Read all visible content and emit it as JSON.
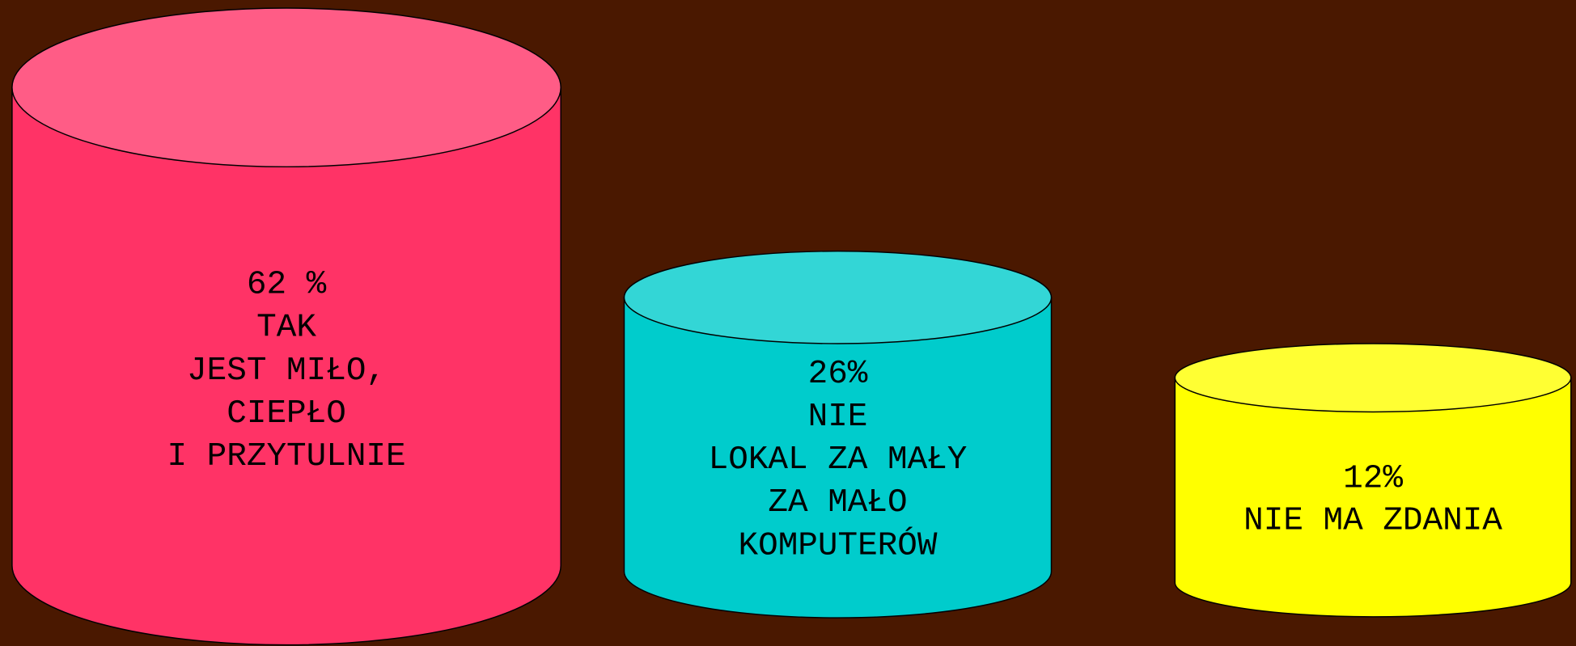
{
  "nodes": [
    {
      "lines": [
        "62 %",
        "TAK",
        "JEST MIŁO,",
        "CIEPŁO",
        "I PRZYTULNIE"
      ]
    },
    {
      "lines": [
        "26%",
        "NIE",
        "LOKAL ZA MAŁY",
        "ZA MAŁO",
        "KOMPUTERÓW"
      ]
    },
    {
      "lines": [
        "12%",
        "NIE MA ZDANIA"
      ]
    }
  ]
}
